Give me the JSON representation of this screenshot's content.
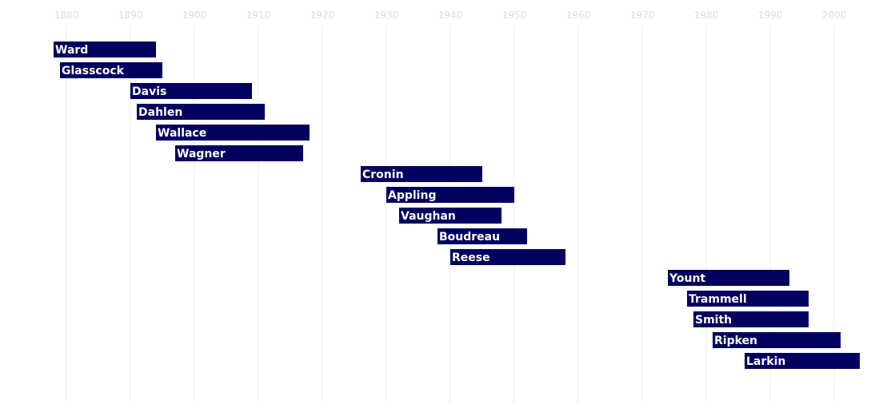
{
  "chart_data": {
    "type": "bar",
    "orientation": "horizontal-timeline",
    "title": "",
    "xlabel": "",
    "ylabel": "",
    "xlim": [
      1877,
      2005
    ],
    "x_ticks": [
      1880,
      1890,
      1900,
      1910,
      1920,
      1930,
      1940,
      1950,
      1960,
      1970,
      1980,
      1990,
      2000
    ],
    "grid": "vertical",
    "legend": "none",
    "colors": {
      "bar": "#02005f",
      "label": "#ffffff",
      "grid": "#eeeeee",
      "tick": "#dddddd"
    },
    "bars": [
      {
        "name": "Ward",
        "start": 1878,
        "end": 1894
      },
      {
        "name": "Glasscock",
        "start": 1879,
        "end": 1895
      },
      {
        "name": "Davis",
        "start": 1890,
        "end": 1909
      },
      {
        "name": "Dahlen",
        "start": 1891,
        "end": 1911
      },
      {
        "name": "Wallace",
        "start": 1894,
        "end": 1918
      },
      {
        "name": "Wagner",
        "start": 1897,
        "end": 1917
      },
      {
        "name": "Cronin",
        "start": 1926,
        "end": 1945
      },
      {
        "name": "Appling",
        "start": 1930,
        "end": 1950
      },
      {
        "name": "Vaughan",
        "start": 1932,
        "end": 1948
      },
      {
        "name": "Boudreau",
        "start": 1938,
        "end": 1952
      },
      {
        "name": "Reese",
        "start": 1940,
        "end": 1958
      },
      {
        "name": "Yount",
        "start": 1974,
        "end": 1993
      },
      {
        "name": "Trammell",
        "start": 1977,
        "end": 1996
      },
      {
        "name": "Smith",
        "start": 1978,
        "end": 1996
      },
      {
        "name": "Ripken",
        "start": 1981,
        "end": 2001
      },
      {
        "name": "Larkin",
        "start": 1986,
        "end": 2004
      }
    ]
  }
}
